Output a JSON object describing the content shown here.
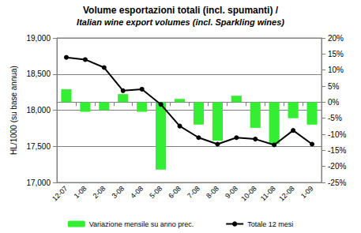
{
  "chart_data": {
    "type": "bar",
    "title": "Volume esportazioni totali (incl. spumanti) /",
    "subtitle": "Italian wine export volumes (incl. Sparkling wines)",
    "y_label": "HL/1000 (su base annua)",
    "categories": [
      "12-07",
      "1-08",
      "2-08",
      "3-08",
      "4-08",
      "5-08",
      "6-08",
      "7-08",
      "8-08",
      "9-08",
      "10-08",
      "11-08",
      "12-08",
      "1-09"
    ],
    "series": [
      {
        "name": "Variazione mensile su anno prec.",
        "type": "bar",
        "axis": "y2",
        "color": "#33ee33",
        "values": [
          4,
          -3,
          -2.5,
          2.5,
          -3,
          -21,
          1,
          -7,
          -12,
          2,
          -8,
          -13,
          -5,
          -7
        ]
      },
      {
        "name": "Totale 12 mesi",
        "type": "line",
        "color": "#000000",
        "marker": "circle",
        "line_style": "solid",
        "values": [
          18730,
          18700,
          18590,
          18270,
          18290,
          18080,
          17780,
          17620,
          17530,
          17620,
          17600,
          17520,
          17720,
          17530
        ]
      }
    ],
    "ylim": [
      17000,
      19000
    ],
    "yticks": [
      {
        "value": 17000,
        "label": "17,000"
      },
      {
        "value": 17500,
        "label": "17,500"
      },
      {
        "value": 18000,
        "label": "18,000"
      },
      {
        "value": 18500,
        "label": "18,500"
      },
      {
        "value": 19000,
        "label": "19,000"
      }
    ],
    "y2lim": [
      -25,
      20
    ],
    "y2ticks": [
      {
        "value": -25,
        "label": "-25%"
      },
      {
        "value": -20,
        "label": "-20%"
      },
      {
        "value": -15,
        "label": "-15%"
      },
      {
        "value": -10,
        "label": "-10%"
      },
      {
        "value": -5,
        "label": "-5%"
      },
      {
        "value": 0,
        "label": "0%"
      },
      {
        "value": 5,
        "label": "5%"
      },
      {
        "value": 10,
        "label": "10%"
      },
      {
        "value": 15,
        "label": "15%"
      },
      {
        "value": 20,
        "label": "20%"
      }
    ],
    "grid": true,
    "legend": "bottom"
  }
}
